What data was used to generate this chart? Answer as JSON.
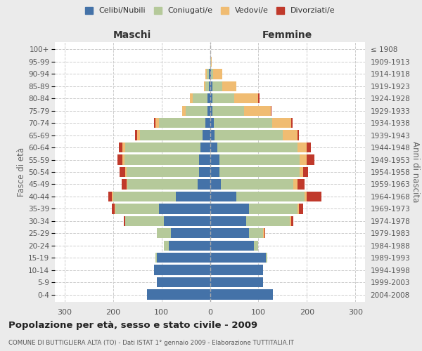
{
  "age_groups": [
    "0-4",
    "5-9",
    "10-14",
    "15-19",
    "20-24",
    "25-29",
    "30-34",
    "35-39",
    "40-44",
    "45-49",
    "50-54",
    "55-59",
    "60-64",
    "65-69",
    "70-74",
    "75-79",
    "80-84",
    "85-89",
    "90-94",
    "95-99",
    "100+"
  ],
  "birth_years": [
    "2004-2008",
    "1999-2003",
    "1994-1998",
    "1989-1993",
    "1984-1988",
    "1979-1983",
    "1974-1978",
    "1969-1973",
    "1964-1968",
    "1959-1963",
    "1954-1958",
    "1949-1953",
    "1944-1948",
    "1939-1943",
    "1934-1938",
    "1929-1933",
    "1924-1928",
    "1919-1923",
    "1914-1918",
    "1909-1913",
    "≤ 1908"
  ],
  "males": {
    "celibi": [
      130,
      110,
      115,
      110,
      85,
      80,
      95,
      105,
      70,
      25,
      22,
      22,
      20,
      15,
      10,
      5,
      5,
      2,
      2,
      0,
      0
    ],
    "coniugati": [
      0,
      0,
      0,
      3,
      10,
      30,
      80,
      90,
      130,
      145,
      150,
      155,
      155,
      130,
      95,
      45,
      30,
      8,
      5,
      0,
      0
    ],
    "vedovi": [
      0,
      0,
      0,
      0,
      0,
      0,
      0,
      2,
      2,
      2,
      3,
      4,
      5,
      5,
      8,
      8,
      6,
      3,
      2,
      0,
      0
    ],
    "divorziati": [
      0,
      0,
      0,
      0,
      0,
      0,
      3,
      5,
      8,
      10,
      12,
      10,
      8,
      4,
      2,
      0,
      0,
      0,
      0,
      0,
      0
    ]
  },
  "females": {
    "nubili": [
      130,
      110,
      110,
      115,
      90,
      80,
      75,
      80,
      55,
      22,
      20,
      20,
      15,
      10,
      8,
      5,
      5,
      5,
      2,
      1,
      0
    ],
    "coniugate": [
      0,
      0,
      0,
      3,
      10,
      30,
      90,
      100,
      140,
      150,
      165,
      165,
      165,
      140,
      120,
      65,
      45,
      20,
      5,
      1,
      0
    ],
    "vedove": [
      0,
      0,
      0,
      0,
      0,
      2,
      2,
      3,
      5,
      8,
      8,
      15,
      20,
      30,
      40,
      55,
      50,
      30,
      18,
      2,
      0
    ],
    "divorziate": [
      0,
      0,
      0,
      0,
      0,
      2,
      5,
      10,
      30,
      15,
      10,
      15,
      8,
      4,
      2,
      2,
      2,
      0,
      0,
      0,
      0
    ]
  },
  "colors": {
    "celibi": "#4472a8",
    "coniugati": "#b5c99a",
    "vedovi": "#f0bc72",
    "divorziati": "#c0392b"
  },
  "xlim": 320,
  "title": "Popolazione per età, sesso e stato civile - 2009",
  "subtitle": "COMUNE DI BUTTIGLIERA ALTA (TO) - Dati ISTAT 1° gennaio 2009 - Elaborazione TUTTITALIA.IT",
  "ylabel_left": "Fasce di età",
  "ylabel_right": "Anni di nascita",
  "xlabel_left": "Maschi",
  "xlabel_right": "Femmine",
  "bg_color": "#ebebeb",
  "plot_bg": "#ffffff"
}
